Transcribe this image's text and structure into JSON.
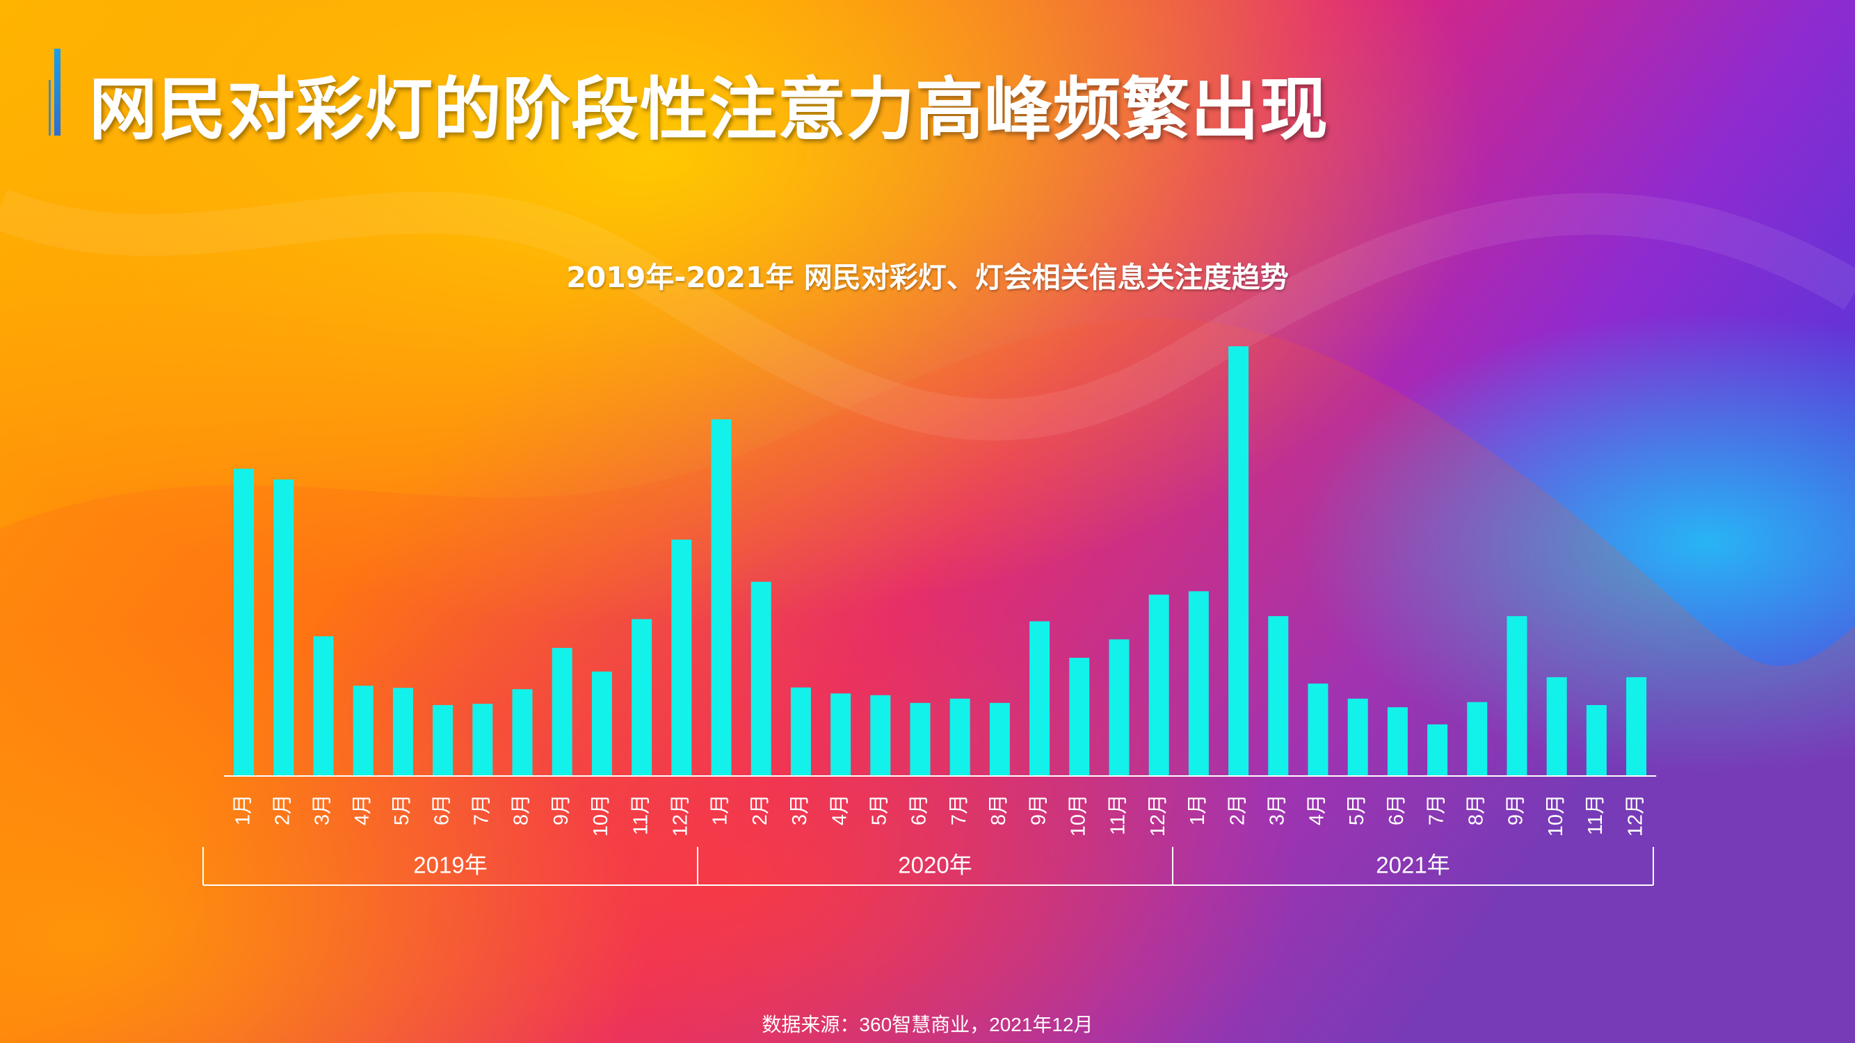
{
  "page": {
    "title": "网民对彩灯的阶段性注意力高峰频繁出现",
    "source": "数据来源：360智慧商业，2021年12月"
  },
  "colors": {
    "bar": "#12f2ea",
    "axis": "#ffffff",
    "accent": "#1aa0e8"
  },
  "chart_data": {
    "type": "bar",
    "title": "2019年-2021年 网民对彩灯、灯会相关信息关注度趋势",
    "xlabel": "",
    "ylabel": "",
    "grid": false,
    "ylim": [
      0,
      100
    ],
    "categories": [
      "1月",
      "2月",
      "3月",
      "4月",
      "5月",
      "6月",
      "7月",
      "8月",
      "9月",
      "10月",
      "11月",
      "12月",
      "1月",
      "2月",
      "3月",
      "4月",
      "5月",
      "6月",
      "7月",
      "8月",
      "9月",
      "10月",
      "11月",
      "12月",
      "1月",
      "2月",
      "3月",
      "4月",
      "5月",
      "6月",
      "7月",
      "8月",
      "9月",
      "10月",
      "11月",
      "12月"
    ],
    "groups": [
      {
        "label": "2019年",
        "count": 12
      },
      {
        "label": "2020年",
        "count": 12
      },
      {
        "label": "2021年",
        "count": 12
      }
    ],
    "values": [
      71.5,
      69,
      32.5,
      21,
      20.5,
      16.5,
      16.8,
      20.2,
      29.8,
      24.3,
      36.5,
      55,
      83,
      45.2,
      20.6,
      19.2,
      18.8,
      17,
      18,
      17,
      36,
      27.5,
      31.8,
      42.2,
      43,
      100,
      37.2,
      21.5,
      18,
      16,
      12,
      17.2,
      37.2,
      23,
      16.5,
      23
    ]
  }
}
